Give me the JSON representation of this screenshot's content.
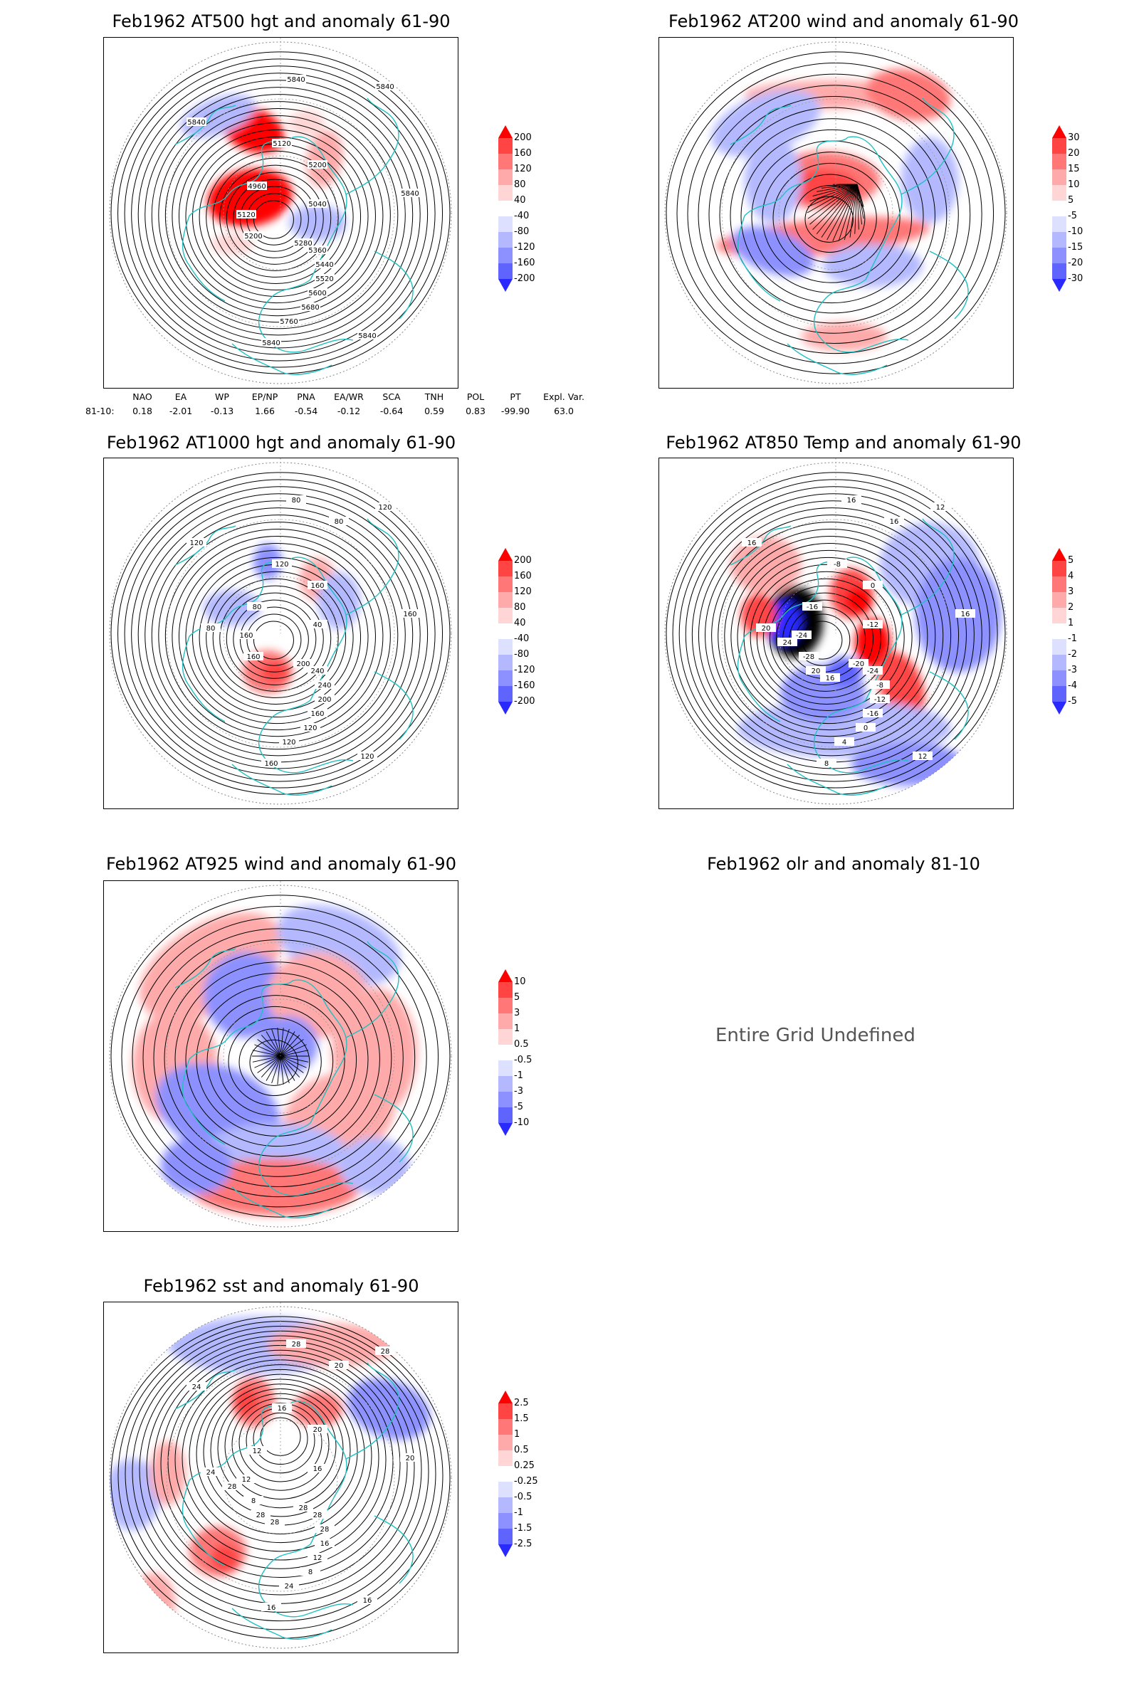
{
  "panels": [
    {
      "id": "p500",
      "title": "Feb1962 AT500 hgt and anomaly 61-90",
      "colorbar": [
        "200",
        "160",
        "120",
        "80",
        "40",
        "-40",
        "-80",
        "-120",
        "-160",
        "-200"
      ],
      "contour_labels": [
        "5840",
        "5840",
        "5840",
        "5840",
        "5200",
        "5120",
        "5040",
        "4960",
        "5120",
        "5200",
        "5280",
        "5360",
        "5440",
        "5520",
        "5600",
        "5680",
        "5760",
        "5840",
        "5840"
      ]
    },
    {
      "id": "p200",
      "title": "Feb1962 AT200 wind and anomaly 61-90",
      "colorbar": [
        "30",
        "20",
        "15",
        "10",
        "5",
        "-5",
        "-10",
        "-15",
        "-20",
        "-30"
      ],
      "contour_labels": []
    },
    {
      "id": "p1000",
      "title": "Feb1962 AT1000 hgt and anomaly 61-90",
      "colorbar": [
        "200",
        "160",
        "120",
        "80",
        "40",
        "-40",
        "-80",
        "-120",
        "-160",
        "-200"
      ],
      "contour_labels": [
        "80",
        "120",
        "120",
        "160",
        "160",
        "120",
        "40",
        "80",
        "160",
        "160",
        "200",
        "240",
        "240",
        "200",
        "160",
        "120",
        "120",
        "160",
        "120",
        "80",
        "80"
      ]
    },
    {
      "id": "p850",
      "title": "Feb1962 AT850 Temp and anomaly 61-90",
      "colorbar": [
        "5",
        "4",
        "3",
        "2",
        "1",
        "-1",
        "-2",
        "-3",
        "-4",
        "-5"
      ],
      "contour_labels": [
        "16",
        "12",
        "16",
        "16",
        "0",
        "-8",
        "-12",
        "-16",
        "-24",
        "-28",
        "-20",
        "-24",
        "-8",
        "-12",
        "-16",
        "0",
        "4",
        "8",
        "12",
        "16",
        "20",
        "24",
        "20",
        "16"
      ]
    },
    {
      "id": "p925",
      "title": "Feb1962 AT925 wind and anomaly 61-90",
      "colorbar": [
        "10",
        "5",
        "3",
        "1",
        "0.5",
        "-0.5",
        "-1",
        "-3",
        "-5",
        "-10"
      ],
      "contour_labels": []
    },
    {
      "id": "polr",
      "title": "Feb1962 olr and anomaly 81-10",
      "undefined_text": "Entire Grid Undefined"
    },
    {
      "id": "psst",
      "title": "Feb1962 sst and anomaly 61-90",
      "colorbar": [
        "2.5",
        "1.5",
        "1",
        "0.5",
        "0.25",
        "-0.25",
        "-0.5",
        "-1",
        "-1.5",
        "-2.5"
      ],
      "contour_labels": [
        "28",
        "28",
        "24",
        "20",
        "20",
        "16",
        "16",
        "12",
        "12",
        "8",
        "28",
        "28",
        "28",
        "16",
        "12",
        "8",
        "24",
        "16",
        "16",
        "20",
        "24",
        "28",
        "28",
        "28"
      ]
    }
  ],
  "teleconnection": {
    "headers": [
      "NAO",
      "EA",
      "WP",
      "EP/NP",
      "PNA",
      "EA/WR",
      "SCA",
      "TNH",
      "POL",
      "PT",
      "Expl. Var."
    ],
    "row_label": "81-10:",
    "values": [
      "0.18",
      "-2.01",
      "-0.13",
      "1.66",
      "-0.54",
      "-0.12",
      "-0.64",
      "0.59",
      "0.83",
      "-99.90",
      "63.0"
    ]
  },
  "colors": {
    "anomaly_positive": [
      "#ff0000",
      "#ff4444",
      "#ff7777",
      "#ffaaaa",
      "#ffd5d5"
    ],
    "anomaly_negative": [
      "#dde0ff",
      "#b4b9ff",
      "#8c91ff",
      "#5f64ff",
      "#2a2aff"
    ],
    "coastline": "#20c0c0",
    "contour": "#000000",
    "grid": "#999999"
  }
}
